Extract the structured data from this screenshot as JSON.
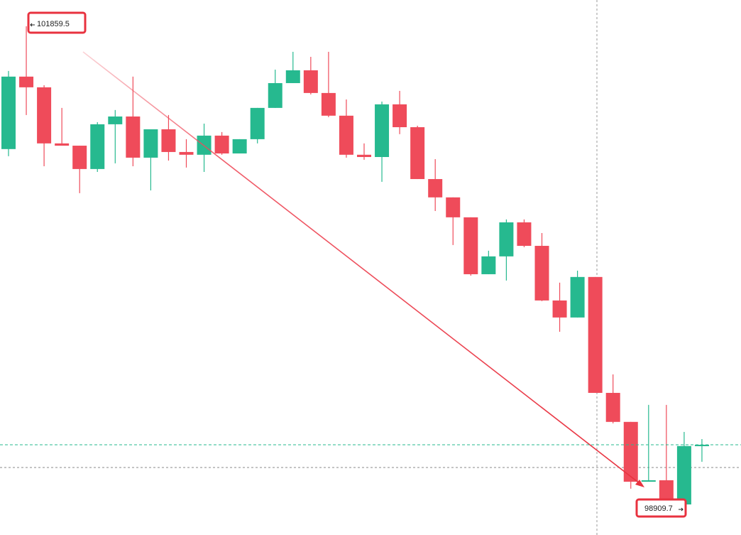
{
  "chart_data": {
    "type": "candlestick",
    "up_color": "#26b98f",
    "down_color": "#ef4b5a",
    "open": [
      101102,
      101549,
      101483,
      101137,
      101123,
      100979,
      101255,
      101303,
      101049,
      101224,
      101084,
      101067,
      101185,
      101075,
      101163,
      101356,
      101509,
      101588,
      101448,
      101308,
      101067,
      101053,
      101378,
      101237,
      100917,
      100804,
      100681,
      100330,
      100440,
      100650,
      100505,
      100168,
      100063,
      100313,
      99598,
      99419,
      99050,
      99059,
      98909.7,
      99270
    ],
    "high": [
      101584,
      101859.5,
      101496,
      101356,
      101123,
      101268,
      101343,
      101549,
      101224,
      101312,
      101163,
      101259,
      101207,
      101163,
      101356,
      101592,
      101702,
      101671,
      101702,
      101408,
      101137,
      101395,
      101461,
      101246,
      101040,
      100804,
      100681,
      100475,
      100668,
      100668,
      100584,
      100278,
      100352,
      100313,
      99712,
      99419,
      99524,
      99524,
      99357,
      99313
    ],
    "low": [
      101058,
      101312,
      100996,
      101123,
      100830,
      100961,
      101014,
      100996,
      100847,
      101031,
      100988,
      100961,
      101067,
      101075,
      101137,
      101356,
      101509,
      101439,
      101299,
      101049,
      101036,
      100900,
      101194,
      100917,
      100720,
      100510,
      100321,
      100330,
      100291,
      100497,
      100164,
      99975,
      100063,
      99598,
      99410,
      99007,
      99050,
      98909.7,
      98909.7,
      99173
    ],
    "close": [
      101549,
      101483,
      101137,
      101123,
      100979,
      101255,
      101303,
      101049,
      101224,
      101084,
      101067,
      101185,
      101075,
      101163,
      101356,
      101509,
      101588,
      101448,
      101308,
      101067,
      101053,
      101378,
      101237,
      100917,
      100804,
      100681,
      100330,
      100440,
      100650,
      100505,
      100168,
      100063,
      100313,
      99598,
      99419,
      99050,
      99059,
      98909.7,
      99270,
      99278
    ]
  }
}
